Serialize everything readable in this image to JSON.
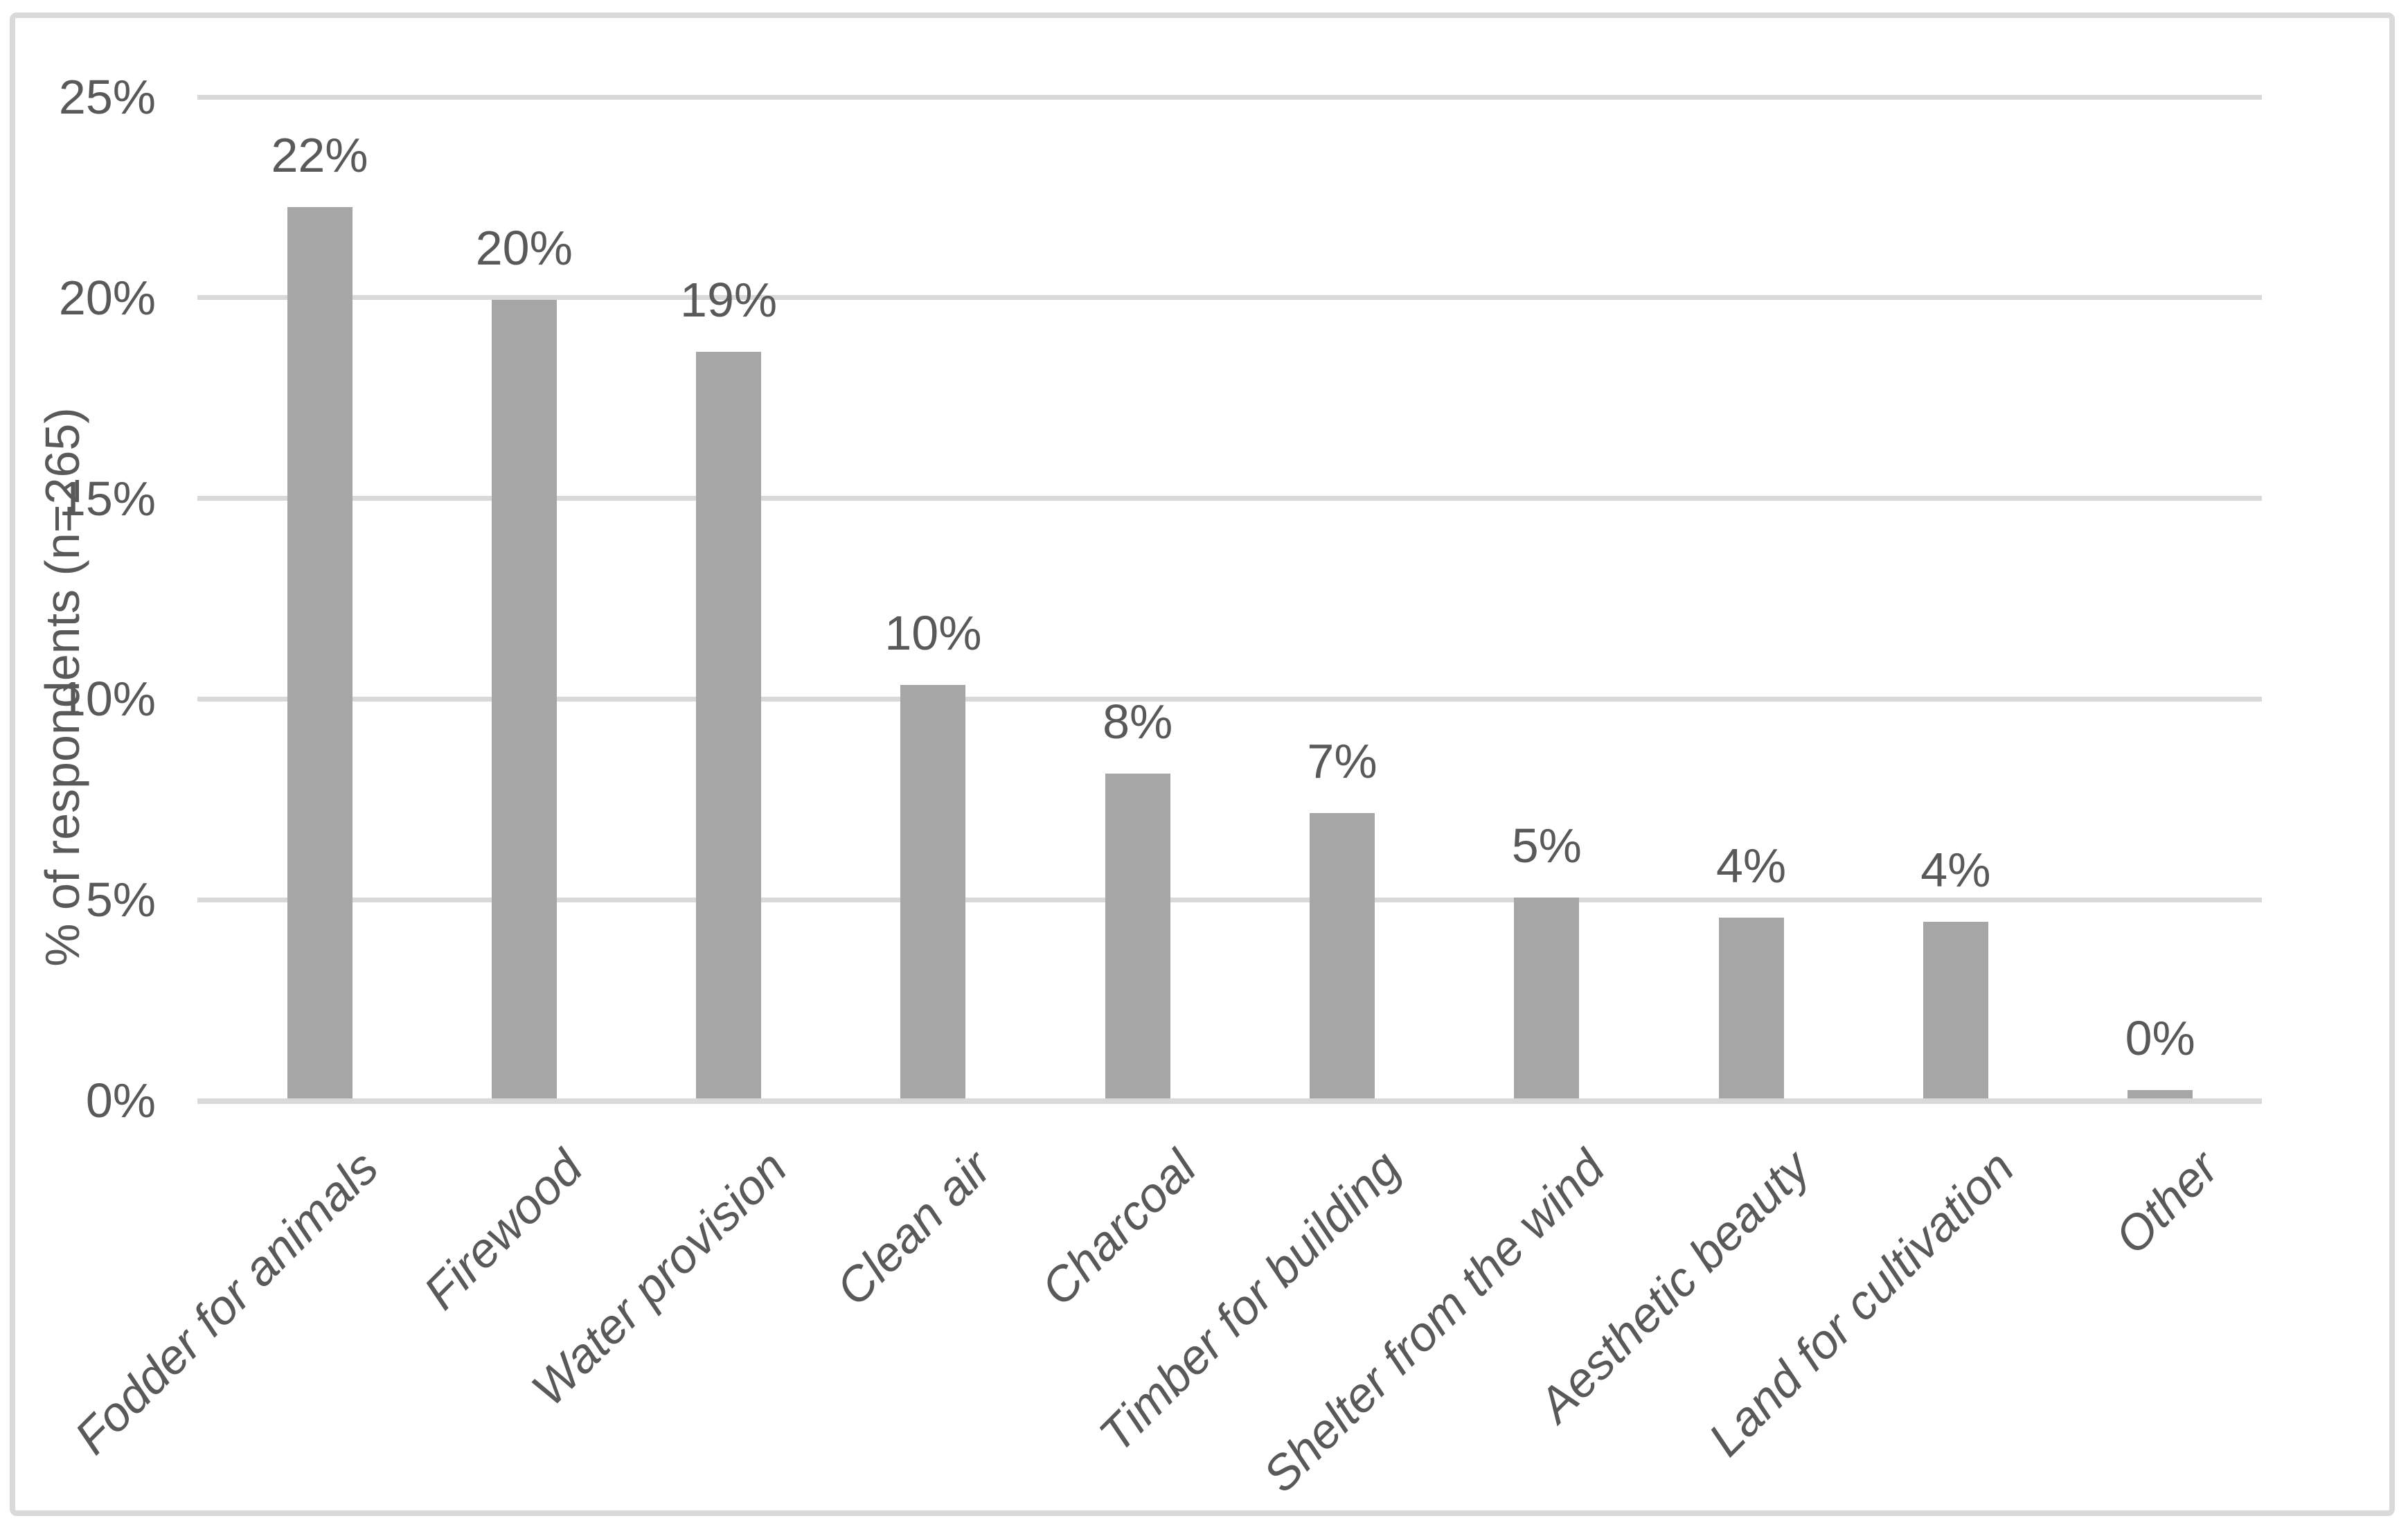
{
  "chart_data": {
    "type": "bar",
    "title": "",
    "xlabel": "",
    "ylabel": "% of respondents (n=265)",
    "ylim": [
      0,
      25
    ],
    "grid": true,
    "legend_position": "none",
    "yticks": [
      {
        "value": 25,
        "label": "25%"
      },
      {
        "value": 20,
        "label": "20%"
      },
      {
        "value": 15,
        "label": "15%"
      },
      {
        "value": 10,
        "label": "10%"
      },
      {
        "value": 5,
        "label": "5%"
      },
      {
        "value": 0,
        "label": "0%"
      }
    ],
    "categories": [
      "Fodder for animals",
      "Firewood",
      "Water provision",
      "Clean air",
      "Charcoal",
      "Timber for building",
      "Shelter from the wind",
      "Aesthetic beauty",
      "Land for cultivation",
      "Other"
    ],
    "values": [
      22.2,
      19.9,
      18.6,
      10.3,
      8.1,
      7.1,
      5.0,
      4.5,
      4.4,
      0.2
    ],
    "data_labels": [
      "22%",
      "20%",
      "19%",
      "10%",
      "8%",
      "7%",
      "5%",
      "4%",
      "4%",
      "0%"
    ],
    "colors": {
      "bar_fill": "#a6a6a6",
      "gridline": "#d9d9d9",
      "axis_line": "#d9d9d9",
      "frame_border": "#d9d9d9",
      "text": "#595959",
      "background": "#ffffff"
    }
  }
}
